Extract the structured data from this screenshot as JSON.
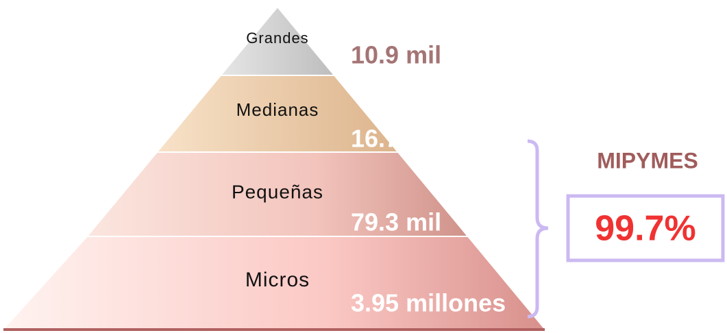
{
  "levels": [
    {
      "label": "Grandes",
      "value": "10.9 mil"
    },
    {
      "label": "Medianas",
      "value": "16.7 mil"
    },
    {
      "label": "Pequeñas",
      "value": "79.3 mil"
    },
    {
      "label": "Micros",
      "value": "3.95 millones"
    }
  ],
  "summary": {
    "label": "MIPYMES",
    "value": "99.7%"
  }
}
